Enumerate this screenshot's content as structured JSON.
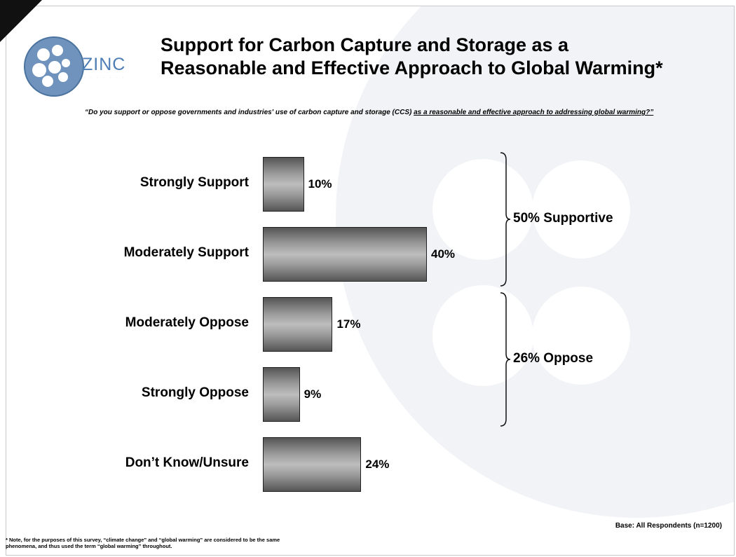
{
  "slide": {
    "title_line1": "Support for Carbon Capture and Storage as a",
    "title_line2": "Reasonable and Effective Approach to Global Warming*",
    "logo_text": "ZINC",
    "question_part1": "“Do you support or oppose governments and industries' use of carbon capture and storage (CCS) ",
    "question_part2": "as a reasonable and effective approach to addressing global warming?”",
    "base_note": "Base: All Respondents (n=1200)",
    "footnote_line1": "* Note, for the purposes of this survey, “climate change” and “global warming” are considered to be the same",
    "footnote_line2": "phenomena, and thus used the term “global warming” throughout."
  },
  "colors": {
    "bar_dark": "#555555",
    "bar_light": "#bdbdbd",
    "logo_blue": "#4d7eb5",
    "background_circles": "#eef1f5"
  },
  "chart_data": {
    "type": "bar",
    "orientation": "horizontal",
    "categories": [
      "Strongly Support",
      "Moderately Support",
      "Moderately Oppose",
      "Strongly Oppose",
      "Don’t Know/Unsure"
    ],
    "values": [
      10,
      40,
      17,
      9,
      24
    ],
    "value_labels": [
      "10%",
      "40%",
      "17%",
      "9%",
      "24%"
    ],
    "groups": [
      {
        "label": "50% Supportive",
        "from": 0,
        "to": 1
      },
      {
        "label": "26% Oppose",
        "from": 2,
        "to": 3
      }
    ],
    "title": "Support for Carbon Capture and Storage as a Reasonable and Effective Approach to Global Warming*",
    "xlabel": "",
    "ylabel": "",
    "grid": false
  }
}
